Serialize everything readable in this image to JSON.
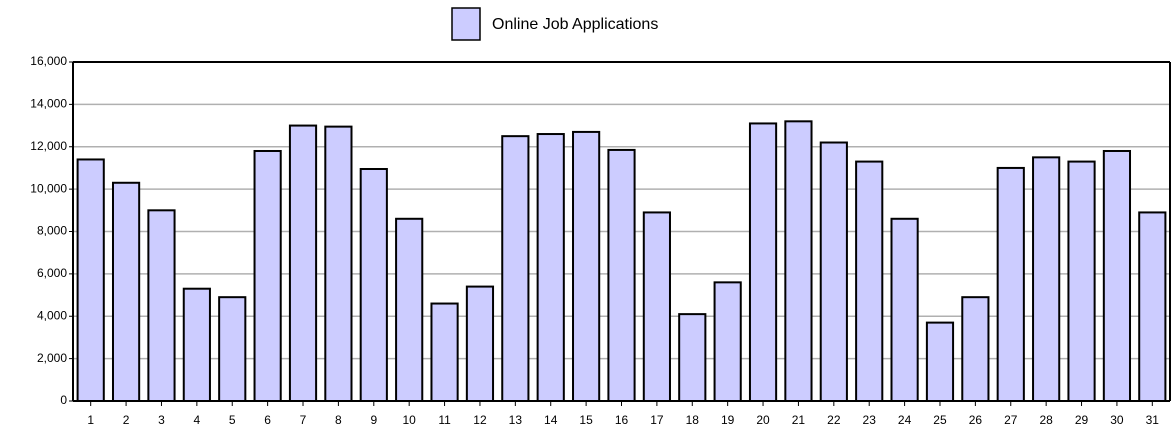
{
  "chart_data": {
    "type": "bar",
    "categories": [
      "1",
      "2",
      "3",
      "4",
      "5",
      "6",
      "7",
      "8",
      "9",
      "10",
      "11",
      "12",
      "13",
      "14",
      "15",
      "16",
      "17",
      "18",
      "19",
      "20",
      "21",
      "22",
      "23",
      "24",
      "25",
      "26",
      "27",
      "28",
      "29",
      "30",
      "31"
    ],
    "series": [
      {
        "name": "Online Job Applications",
        "color": "#ccccff",
        "values": [
          11400,
          10300,
          9000,
          5300,
          4900,
          11800,
          13000,
          12950,
          10950,
          8600,
          4600,
          5400,
          12500,
          12600,
          12700,
          11850,
          8900,
          4100,
          5600,
          13100,
          13200,
          12200,
          11300,
          8600,
          3700,
          4900,
          11000,
          11500,
          11300,
          11800,
          8900
        ]
      }
    ],
    "ylim": [
      0,
      16000
    ],
    "yticks": [
      0,
      {
        "value": 2000,
        "label": "2,000"
      },
      {
        "value": 4000,
        "label": "4,000"
      },
      {
        "value": 6000,
        "label": "6,000"
      },
      {
        "value": 8000,
        "label": "8,000"
      },
      {
        "value": 10000,
        "label": "10,000"
      },
      {
        "value": 12000,
        "label": "12,000"
      },
      {
        "value": 14000,
        "label": "14,000"
      },
      {
        "value": 16000,
        "label": "16,000"
      }
    ],
    "grid": true,
    "legend": "top"
  }
}
